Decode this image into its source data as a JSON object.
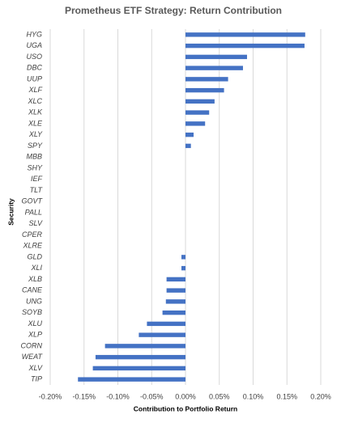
{
  "chart_data": {
    "type": "barh",
    "title": "Prometheus ETF Strategy: Return Contribution",
    "x_label": "Contribution to Portfolio Return",
    "y_label": "Security",
    "categories": [
      "HYG",
      "UGA",
      "USO",
      "DBC",
      "UUP",
      "XLF",
      "XLC",
      "XLK",
      "XLE",
      "XLY",
      "SPY",
      "MBB",
      "SHY",
      "IEF",
      "TLT",
      "GOVT",
      "PALL",
      "SLV",
      "CPER",
      "XLRE",
      "GLD",
      "XLI",
      "XLB",
      "CANE",
      "UNG",
      "SOYB",
      "XLU",
      "XLP",
      "CORN",
      "WEAT",
      "XLV",
      "TIP"
    ],
    "values": [
      0.177,
      0.176,
      0.091,
      0.085,
      0.063,
      0.057,
      0.043,
      0.035,
      0.029,
      0.012,
      0.008,
      0,
      0,
      0,
      0,
      0,
      0,
      0,
      0,
      0,
      -0.006,
      -0.006,
      -0.028,
      -0.028,
      -0.029,
      -0.034,
      -0.057,
      -0.069,
      -0.119,
      -0.133,
      -0.137,
      -0.159
    ],
    "color": "#4472c4",
    "xlim": [
      -0.2,
      0.2
    ],
    "xticks": [
      {
        "value": -0.2,
        "label": "-0.20%"
      },
      {
        "value": -0.15,
        "label": "-0.15%"
      },
      {
        "value": -0.1,
        "label": "-0.10%"
      },
      {
        "value": -0.05,
        "label": "-0.05%"
      },
      {
        "value": 0,
        "label": "0.00%"
      },
      {
        "value": 0.05,
        "label": "0.05%"
      },
      {
        "value": 0.1,
        "label": "0.10%"
      },
      {
        "value": 0.15,
        "label": "0.15%"
      },
      {
        "value": 0.2,
        "label": "0.20%"
      }
    ],
    "grid": true
  }
}
